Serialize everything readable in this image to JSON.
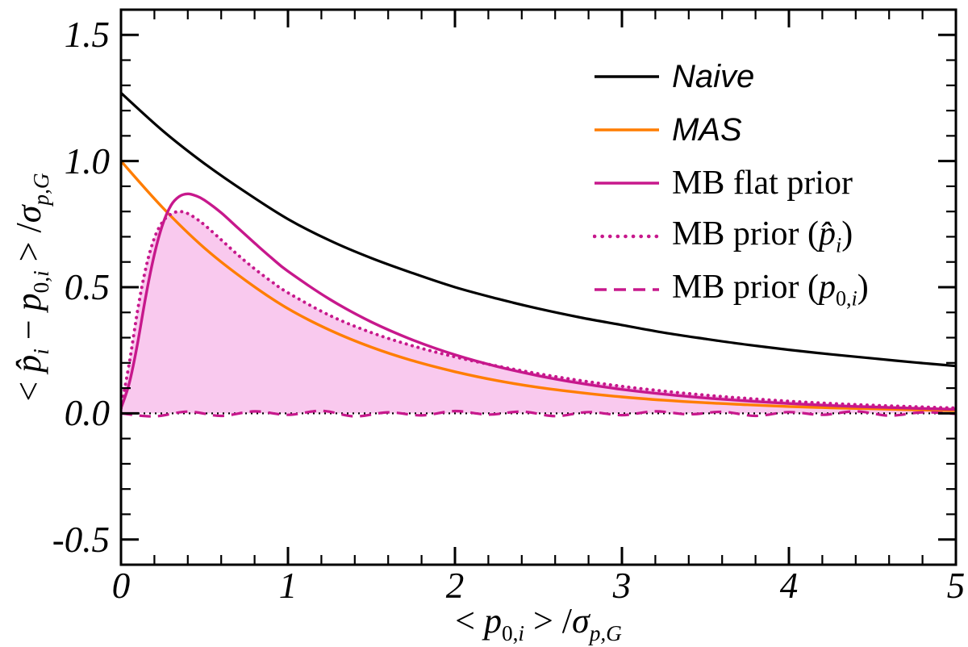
{
  "chart_data": {
    "type": "line",
    "title": "",
    "xlabel_html": "&lt; <i>p</i><sub>0,<i>i</i></sub> &gt; /<i>σ</i><sub><i>p,G</i></sub>",
    "ylabel_html": "&lt; <i>p̂</i><sub><i>i</i></sub> − <i>p</i><sub>0,<i>i</i></sub> &gt; /<i>σ</i><sub><i>p,G</i></sub>",
    "xlim": [
      0,
      5
    ],
    "ylim": [
      -0.6,
      1.6
    ],
    "xticks": {
      "values": [
        0,
        1,
        2,
        3,
        4,
        5
      ],
      "labels": [
        "0",
        "1",
        "2",
        "3",
        "4",
        "5"
      ],
      "minor_step": 0.2
    },
    "yticks": {
      "values": [
        -0.5,
        0,
        0.5,
        1,
        1.5
      ],
      "labels": [
        "-0.5",
        "0.0",
        "0.5",
        "1.0",
        "1.5"
      ],
      "minor_step": 0.1
    },
    "frame_color": "#000000",
    "zero_line": {
      "color": "#000000",
      "dash": "2 5",
      "width": 2.2
    },
    "legend_position": "upper-right",
    "grid": false,
    "series": [
      {
        "name": "naive",
        "label_html": "Naive",
        "sans_italic": true,
        "color": "#000000",
        "style": "solid",
        "width": 3.2,
        "x": [
          0,
          0.25,
          0.5,
          0.75,
          1,
          1.25,
          1.5,
          1.75,
          2,
          2.25,
          2.5,
          2.75,
          3,
          3.25,
          3.5,
          3.75,
          4,
          4.25,
          4.5,
          4.75,
          5
        ],
        "y": [
          1.27,
          1.12,
          0.99,
          0.875,
          0.77,
          0.685,
          0.615,
          0.555,
          0.5,
          0.455,
          0.415,
          0.38,
          0.35,
          0.32,
          0.295,
          0.272,
          0.252,
          0.234,
          0.218,
          0.202,
          0.188
        ]
      },
      {
        "name": "mas",
        "label_html": "MAS",
        "sans_italic": true,
        "color": "#ff7d00",
        "style": "solid",
        "width": 3.4,
        "x": [
          0,
          0.25,
          0.5,
          0.75,
          1,
          1.25,
          1.5,
          1.75,
          2,
          2.25,
          2.5,
          2.75,
          3,
          3.25,
          3.5,
          3.75,
          4,
          4.25,
          4.5,
          4.75,
          5
        ],
        "y": [
          1.0,
          0.815,
          0.655,
          0.525,
          0.415,
          0.33,
          0.262,
          0.208,
          0.165,
          0.13,
          0.103,
          0.082,
          0.065,
          0.052,
          0.042,
          0.034,
          0.027,
          0.022,
          0.018,
          0.014,
          0.011
        ]
      },
      {
        "name": "mb-flat-prior",
        "label_html": "MB flat prior",
        "sans_italic": false,
        "color": "#c7188c",
        "style": "solid",
        "width": 3.4,
        "x": [
          0,
          0.05,
          0.1,
          0.15,
          0.2,
          0.25,
          0.3,
          0.35,
          0.4,
          0.45,
          0.5,
          0.6,
          0.7,
          0.8,
          0.9,
          1,
          1.25,
          1.5,
          1.75,
          2,
          2.25,
          2.5,
          2.75,
          3,
          3.25,
          3.5,
          3.75,
          4,
          4.25,
          4.5,
          4.75,
          5
        ],
        "y": [
          0.02,
          0.12,
          0.28,
          0.47,
          0.63,
          0.75,
          0.825,
          0.86,
          0.87,
          0.862,
          0.845,
          0.795,
          0.735,
          0.675,
          0.617,
          0.563,
          0.452,
          0.362,
          0.29,
          0.232,
          0.186,
          0.149,
          0.119,
          0.095,
          0.076,
          0.061,
          0.049,
          0.039,
          0.031,
          0.025,
          0.02,
          0.016
        ]
      },
      {
        "name": "mb-prior-phat",
        "label_html": "MB prior (<i>p̂</i><sub><i>i</i></sub>)",
        "sans_italic": false,
        "color": "#c7188c",
        "style": "dotted",
        "width": 4,
        "fill": true,
        "fill_color": "#f9c9ee",
        "x": [
          0,
          0.05,
          0.1,
          0.15,
          0.2,
          0.25,
          0.3,
          0.35,
          0.4,
          0.45,
          0.5,
          0.6,
          0.7,
          0.8,
          0.9,
          1,
          1.25,
          1.5,
          1.75,
          2,
          2.25,
          2.5,
          2.75,
          3,
          3.25,
          3.5,
          3.75,
          4,
          4.25,
          4.5,
          4.75,
          5
        ],
        "y": [
          0.02,
          0.2,
          0.41,
          0.58,
          0.695,
          0.76,
          0.79,
          0.8,
          0.792,
          0.772,
          0.747,
          0.688,
          0.628,
          0.573,
          0.523,
          0.478,
          0.388,
          0.32,
          0.267,
          0.224,
          0.188,
          0.157,
          0.13,
          0.107,
          0.088,
          0.072,
          0.059,
          0.048,
          0.039,
          0.032,
          0.026,
          0.021
        ]
      },
      {
        "name": "mb-prior-p0",
        "label_html": "MB prior (<i>p</i><sub>0,<i>i</i></sub>)",
        "sans_italic": false,
        "color": "#c7188c",
        "style": "dashed",
        "width": 3.2,
        "x": [
          0,
          0.2,
          0.4,
          0.6,
          0.8,
          1,
          1.2,
          1.4,
          1.6,
          1.8,
          2,
          2.2,
          2.4,
          2.6,
          2.8,
          3,
          3.2,
          3.4,
          3.6,
          3.8,
          4,
          4.2,
          4.4,
          4.6,
          4.8,
          5
        ],
        "y": [
          0,
          -0.012,
          0.007,
          -0.01,
          0.008,
          -0.006,
          0.01,
          -0.012,
          0.004,
          -0.008,
          0.009,
          -0.005,
          0.007,
          -0.011,
          0.005,
          -0.007,
          0.008,
          -0.004,
          0.006,
          -0.01,
          0.005,
          -0.006,
          0.008,
          -0.009,
          0.004,
          -0.002
        ]
      }
    ]
  }
}
